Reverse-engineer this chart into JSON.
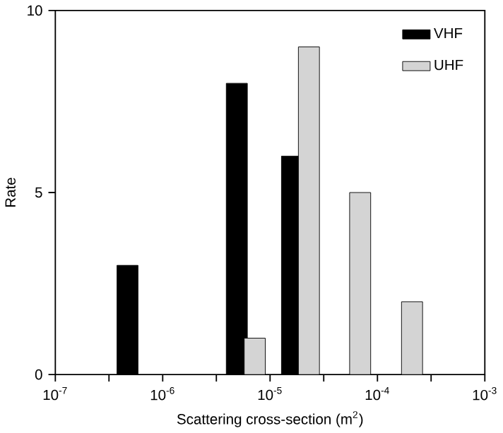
{
  "chart_data": {
    "type": "bar",
    "xlabel": "Scattering cross-section (m$^{2}$)",
    "ylabel": "Rate",
    "series": [
      {
        "name": "VHF",
        "color": "#000000",
        "x": [
          4.7e-07,
          4.9e-06,
          1.6e-05
        ],
        "values": [
          3,
          8,
          6
        ]
      },
      {
        "name": "UHF",
        "color": "#d4d4d4",
        "x": [
          7.2e-06,
          2.3e-05,
          6.9e-05,
          0.00021
        ],
        "values": [
          1,
          9,
          5,
          2
        ]
      }
    ],
    "log": "x",
    "xlim": [
      1e-07,
      0.001
    ],
    "ylim": [
      0,
      10
    ],
    "xticks": [
      {
        "value": 1e-07,
        "label": "10$^{-7}$"
      },
      {
        "value": 3.16e-07,
        "label": null
      },
      {
        "value": 1e-06,
        "label": "10$^{-6}$"
      },
      {
        "value": 3.16e-06,
        "label": null
      },
      {
        "value": 1e-05,
        "label": "10$^{-5}$"
      },
      {
        "value": 3.16e-05,
        "label": null
      },
      {
        "value": 0.0001,
        "label": "10$^{-4}$"
      },
      {
        "value": 0.000316,
        "label": null
      },
      {
        "value": 0.001,
        "label": "10$^{-3}$"
      }
    ],
    "yticks": [
      0,
      5,
      10
    ],
    "legend": "top right",
    "grid": false
  }
}
